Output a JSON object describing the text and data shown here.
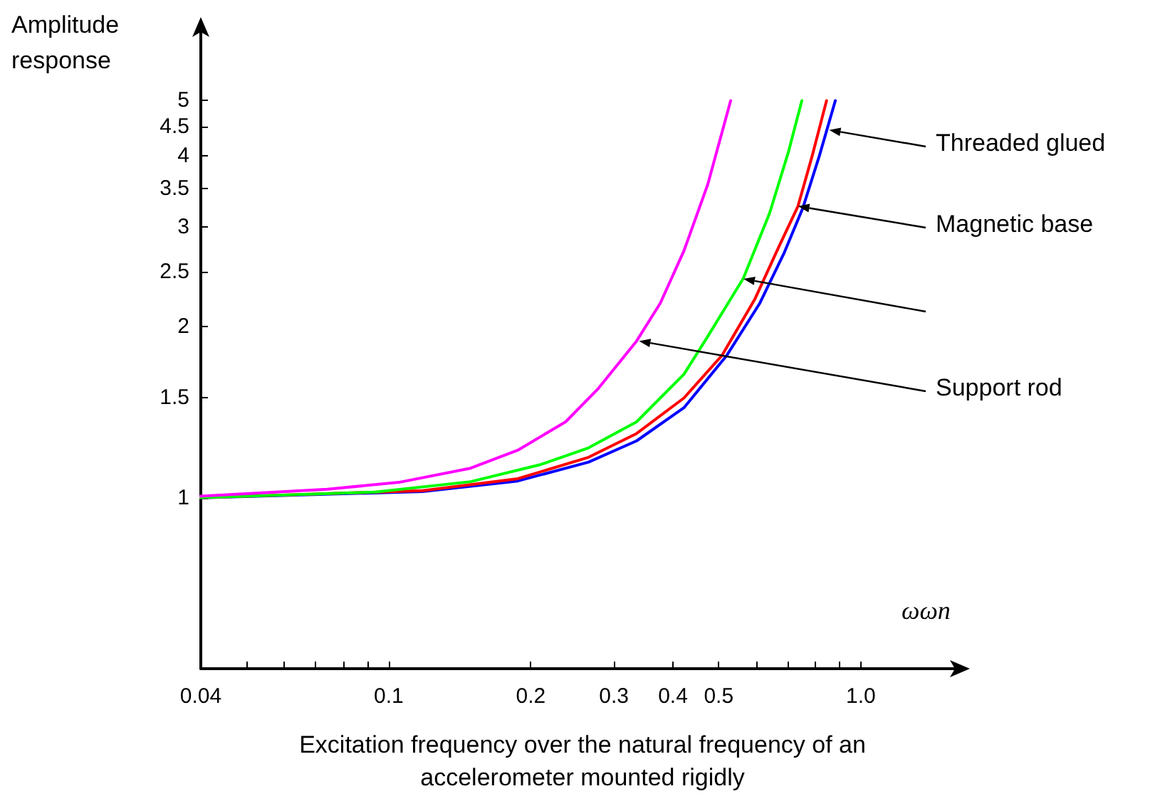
{
  "chart_data": {
    "type": "line",
    "xlabel": "Excitation frequency over the natural frequency of an\naccelerometer mounted rigidly",
    "ylabel": "Amplitude\nresponse",
    "log": "xy",
    "grid": false,
    "marker": "none",
    "line_style": "solid",
    "xlim": [
      0.04,
      1.61
    ],
    "xticks": [
      0.04,
      {
        "value": 0.05,
        "label": null
      },
      {
        "value": 0.06,
        "label": null
      },
      {
        "value": 0.07,
        "label": null
      },
      {
        "value": 0.08,
        "label": null
      },
      {
        "value": 0.09,
        "label": null
      },
      0.1,
      0.2,
      0.3,
      0.4,
      0.5,
      {
        "value": 0.6,
        "label": null
      },
      {
        "value": 0.7,
        "label": null
      },
      {
        "value": 0.8,
        "label": null
      },
      {
        "value": 0.9,
        "label": null
      },
      {
        "value": 1,
        "label": "1.0"
      }
    ],
    "ylim": [
      0.5,
      6.7
    ],
    "yticks": [
      1,
      1.5,
      2,
      2.5,
      3,
      3.5,
      4,
      4.5,
      5
    ],
    "series": [
      {
        "color": "#0000ff",
        "x": [
          0.04,
          0.118,
          0.1876,
          0.265,
          0.335,
          0.422,
          0.52,
          0.611,
          0.687,
          0.753,
          0.817,
          0.883
        ],
        "values": [
          1.0,
          1.025,
          1.07,
          1.155,
          1.259,
          1.44,
          1.78,
          2.2,
          2.69,
          3.23,
          4.0,
          5.0
        ]
      },
      {
        "color": "#ff0000",
        "x": [
          0.04,
          0.118,
          0.1876,
          0.265,
          0.335,
          0.422,
          0.508,
          0.597,
          0.671,
          0.736,
          0.789,
          0.846
        ],
        "values": [
          1.0,
          1.029,
          1.08,
          1.178,
          1.297,
          1.498,
          1.78,
          2.24,
          2.77,
          3.26,
          4.0,
          5.0
        ]
      },
      {
        "color": "#00ff00",
        "x": [
          0.04,
          0.0935,
          0.149,
          0.21,
          0.265,
          0.335,
          0.422,
          0.474,
          0.564,
          0.641,
          0.703,
          0.75
        ],
        "values": [
          1.0,
          1.023,
          1.067,
          1.144,
          1.224,
          1.36,
          1.649,
          1.923,
          2.435,
          3.17,
          4.07,
          5.0
        ]
      },
      {
        "color": "#ff00ff",
        "x": [
          0.04,
          0.0741,
          0.105,
          0.149,
          0.1876,
          0.237,
          0.278,
          0.335,
          0.376,
          0.422,
          0.474,
          0.53
        ],
        "values": [
          1.006,
          1.035,
          1.064,
          1.127,
          1.212,
          1.36,
          1.557,
          1.887,
          2.2,
          2.72,
          3.56,
          5.0
        ]
      }
    ],
    "annotations": [
      {
        "text": "Threaded glued",
        "x": 0.857,
        "y": 4.44
      },
      {
        "text": "Magnetic base",
        "x": 0.736,
        "y": 3.26
      },
      {
        "text": "Support rod",
        "x": 0.339,
        "y": 1.887
      },
      "ωωn"
    ]
  }
}
